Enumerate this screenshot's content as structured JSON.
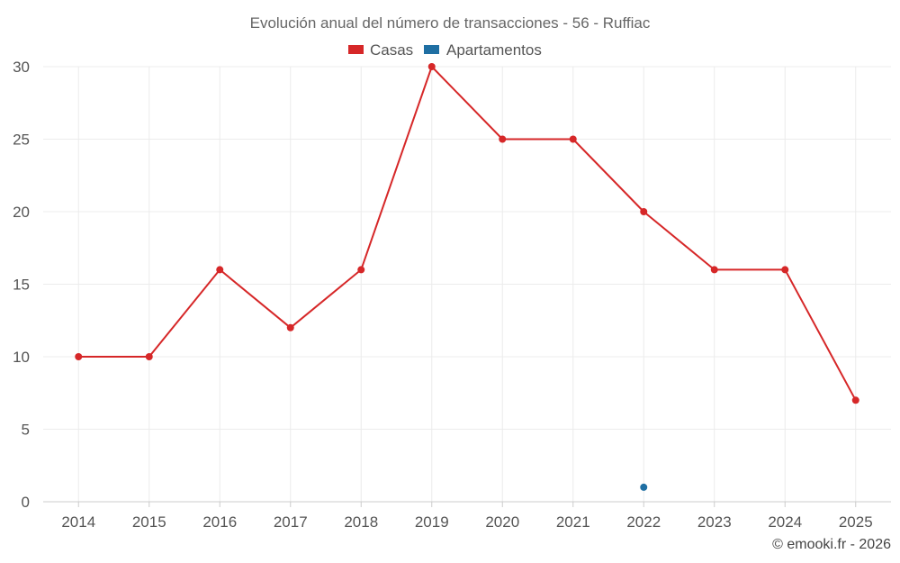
{
  "chart_data": {
    "type": "line",
    "title": "Evolución anual del número de transacciones - 56 - Ruffiac",
    "xlabel": "",
    "ylabel": "",
    "categories": [
      "2014",
      "2015",
      "2016",
      "2017",
      "2018",
      "2019",
      "2020",
      "2021",
      "2022",
      "2023",
      "2024",
      "2025"
    ],
    "ylim": [
      0,
      30
    ],
    "yticks": [
      0,
      5,
      10,
      15,
      20,
      25,
      30
    ],
    "grid": true,
    "legend_position": "top-center",
    "series": [
      {
        "name": "Casas",
        "color": "#d62728",
        "values": [
          10,
          10,
          16,
          12,
          16,
          30,
          25,
          25,
          20,
          16,
          16,
          7
        ]
      },
      {
        "name": "Apartamentos",
        "color": "#1f6fa3",
        "values": [
          null,
          null,
          null,
          null,
          null,
          null,
          null,
          null,
          1,
          null,
          null,
          null
        ]
      }
    ]
  },
  "credit": "© emooki.fr - 2026"
}
